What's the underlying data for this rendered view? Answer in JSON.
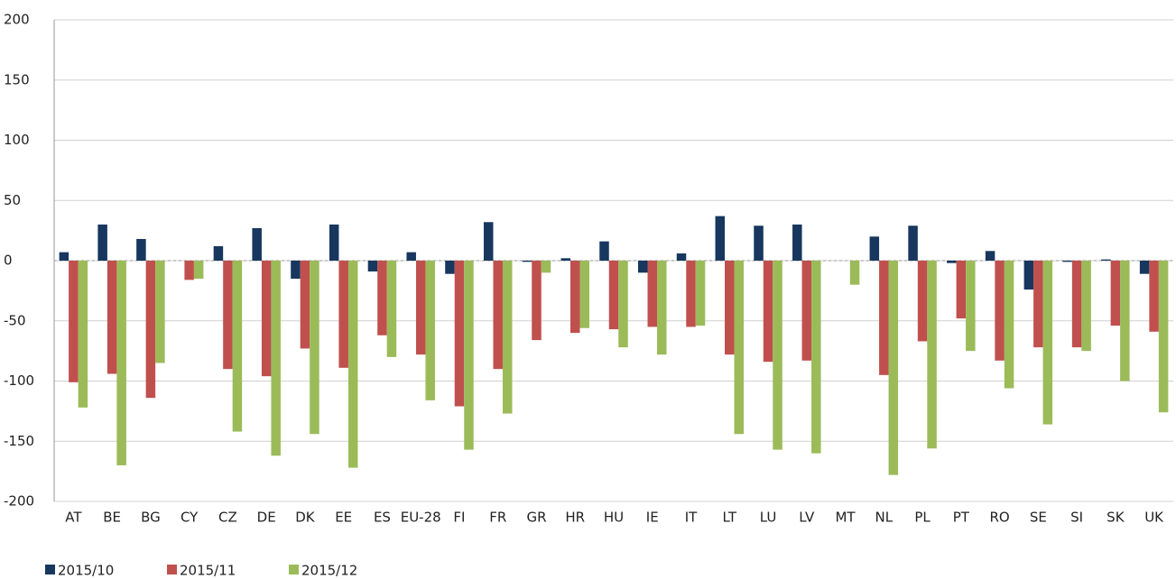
{
  "chart_data": {
    "type": "bar",
    "categories": [
      "AT",
      "BE",
      "BG",
      "CY",
      "CZ",
      "DE",
      "DK",
      "EE",
      "ES",
      "EU-28",
      "FI",
      "FR",
      "GR",
      "HR",
      "HU",
      "IE",
      "IT",
      "LT",
      "LU",
      "LV",
      "MT",
      "NL",
      "PL",
      "PT",
      "RO",
      "SE",
      "SI",
      "SK",
      "UK"
    ],
    "series": [
      {
        "name": "2015/10",
        "color": "#17375e",
        "values": [
          7,
          30,
          18,
          0,
          12,
          27,
          -15,
          30,
          -9,
          7,
          -11,
          32,
          -1,
          2,
          16,
          -10,
          6,
          37,
          29,
          30,
          0,
          20,
          29,
          -2,
          8,
          -24,
          -1,
          1,
          -11
        ]
      },
      {
        "name": "2015/11",
        "color": "#c0504d",
        "values": [
          -101,
          -94,
          -114,
          -16,
          -90,
          -96,
          -73,
          -89,
          -62,
          -78,
          -121,
          -90,
          -66,
          -60,
          -57,
          -55,
          -55,
          -78,
          -84,
          -83,
          0,
          -95,
          -67,
          -48,
          -83,
          -72,
          -72,
          -54,
          -59
        ]
      },
      {
        "name": "2015/12",
        "color": "#9bbb59",
        "values": [
          -122,
          -170,
          -85,
          -15,
          -142,
          -162,
          -144,
          -172,
          -80,
          -116,
          -157,
          -127,
          -10,
          -56,
          -72,
          -78,
          -54,
          -144,
          -157,
          -160,
          -20,
          -178,
          -156,
          -75,
          -106,
          -136,
          -75,
          -100,
          -126
        ]
      }
    ],
    "ylim": [
      -200,
      200
    ],
    "yticks": [
      -200,
      -150,
      -100,
      -50,
      0,
      50,
      100,
      150,
      200
    ],
    "grid": true,
    "legend": "bottom-left"
  }
}
